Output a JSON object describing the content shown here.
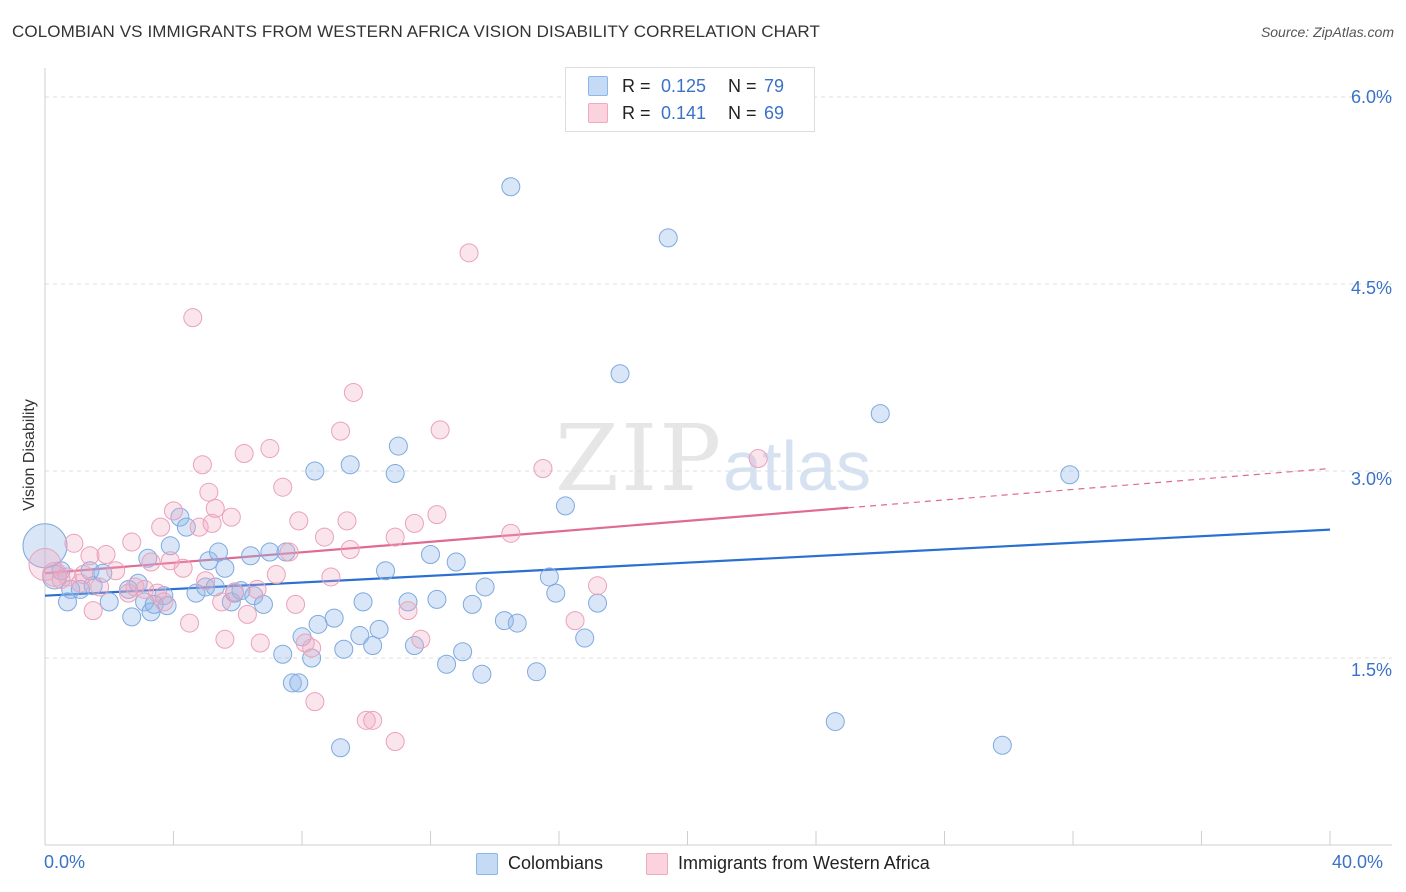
{
  "header": {
    "title": "COLOMBIAN VS IMMIGRANTS FROM WESTERN AFRICA VISION DISABILITY CORRELATION CHART",
    "source": "Source: ZipAtlas.com"
  },
  "watermark": {
    "zip": "ZIP",
    "atlas": "atlas"
  },
  "colors": {
    "blue": "#8fb6e8",
    "blue_line": "#2a6fd1",
    "pink": "#f1a9c0",
    "pink_line": "#e06a93",
    "axis_text": "#3a72c8"
  },
  "stats": [
    {
      "r_label": "R =",
      "r_value": "0.125",
      "n_label": "N =",
      "n_value": "79"
    },
    {
      "r_label": "R =",
      "r_value": "0.141",
      "n_label": "N =",
      "n_value": "69"
    }
  ],
  "chart_data": {
    "type": "scatter",
    "title": "COLOMBIAN VS IMMIGRANTS FROM WESTERN AFRICA VISION DISABILITY CORRELATION CHART",
    "xlabel": "",
    "ylabel": "Vision Disability",
    "xlim": [
      0,
      40
    ],
    "ylim": [
      0,
      6.2
    ],
    "x_tick_labels": [
      "0.0%",
      "40.0%"
    ],
    "y_ticks": [
      1.5,
      3.0,
      4.5,
      6.0
    ],
    "y_tick_labels": [
      "1.5%",
      "3.0%",
      "4.5%",
      "6.0%"
    ],
    "legend_position": "bottom",
    "series": [
      {
        "name": "Colombians",
        "trend": {
          "x": [
            0,
            40
          ],
          "y": [
            2.0,
            2.53
          ],
          "dashed_from": null
        },
        "points": [
          [
            0.0,
            2.4,
            22
          ],
          [
            0.3,
            2.15,
            12
          ],
          [
            0.7,
            1.95,
            9
          ],
          [
            0.8,
            2.05,
            9
          ],
          [
            1.1,
            2.05,
            9
          ],
          [
            1.4,
            2.2,
            9
          ],
          [
            1.5,
            2.08,
            9
          ],
          [
            1.8,
            2.18,
            9
          ],
          [
            2.0,
            1.95,
            9
          ],
          [
            2.6,
            2.05,
            9
          ],
          [
            2.7,
            1.83,
            9
          ],
          [
            2.9,
            2.1,
            9
          ],
          [
            3.1,
            1.95,
            9
          ],
          [
            3.2,
            2.3,
            9
          ],
          [
            3.3,
            1.87,
            9
          ],
          [
            3.4,
            1.93,
            9
          ],
          [
            3.7,
            2.0,
            9
          ],
          [
            3.8,
            1.92,
            9
          ],
          [
            3.9,
            2.4,
            9
          ],
          [
            4.2,
            2.63,
            9
          ],
          [
            4.4,
            2.55,
            9
          ],
          [
            4.7,
            2.02,
            9
          ],
          [
            5.0,
            2.07,
            9
          ],
          [
            5.1,
            2.28,
            9
          ],
          [
            5.3,
            2.07,
            9
          ],
          [
            5.4,
            2.35,
            9
          ],
          [
            5.6,
            2.22,
            9
          ],
          [
            5.8,
            1.95,
            9
          ],
          [
            5.9,
            2.02,
            9
          ],
          [
            6.1,
            2.04,
            9
          ],
          [
            6.4,
            2.32,
            9
          ],
          [
            6.5,
            2.0,
            9
          ],
          [
            6.8,
            1.93,
            9
          ],
          [
            7.0,
            2.35,
            9
          ],
          [
            7.4,
            1.53,
            9
          ],
          [
            7.5,
            2.35,
            9
          ],
          [
            7.7,
            1.3,
            9
          ],
          [
            7.9,
            1.3,
            9
          ],
          [
            8.0,
            1.67,
            9
          ],
          [
            8.3,
            1.5,
            9
          ],
          [
            8.4,
            3.0,
            9
          ],
          [
            8.5,
            1.77,
            9
          ],
          [
            9.0,
            1.82,
            9
          ],
          [
            9.2,
            0.78,
            9
          ],
          [
            9.3,
            1.57,
            9
          ],
          [
            9.5,
            3.05,
            9
          ],
          [
            9.8,
            1.68,
            9
          ],
          [
            9.9,
            1.95,
            9
          ],
          [
            10.2,
            1.6,
            9
          ],
          [
            10.4,
            1.73,
            9
          ],
          [
            10.6,
            2.2,
            9
          ],
          [
            10.9,
            2.98,
            9
          ],
          [
            11.0,
            3.2,
            9
          ],
          [
            11.3,
            1.95,
            9
          ],
          [
            11.5,
            1.6,
            9
          ],
          [
            12.0,
            2.33,
            9
          ],
          [
            12.2,
            1.97,
            9
          ],
          [
            12.5,
            1.45,
            9
          ],
          [
            12.8,
            2.27,
            9
          ],
          [
            13.0,
            1.55,
            9
          ],
          [
            13.3,
            1.93,
            9
          ],
          [
            13.6,
            1.37,
            9
          ],
          [
            13.7,
            2.07,
            9
          ],
          [
            14.3,
            1.8,
            9
          ],
          [
            14.7,
            1.78,
            9
          ],
          [
            14.5,
            5.28,
            9
          ],
          [
            15.3,
            1.39,
            9
          ],
          [
            15.7,
            2.15,
            9
          ],
          [
            15.9,
            2.02,
            9
          ],
          [
            16.2,
            2.72,
            9
          ],
          [
            16.8,
            1.66,
            9
          ],
          [
            17.2,
            1.94,
            9
          ],
          [
            17.9,
            3.78,
            9
          ],
          [
            19.4,
            4.87,
            9
          ],
          [
            24.6,
            0.99,
            9
          ],
          [
            26.0,
            3.46,
            9
          ],
          [
            29.8,
            0.8,
            9
          ],
          [
            31.9,
            2.97,
            9
          ],
          [
            0.5,
            2.2,
            9
          ]
        ]
      },
      {
        "name": "Immigrants from Western Africa",
        "trend": {
          "x": [
            0,
            40
          ],
          "y": [
            2.18,
            3.02
          ],
          "dashed_from": 25
        },
        "points": [
          [
            0.0,
            2.25,
            16
          ],
          [
            0.3,
            2.17,
            12
          ],
          [
            0.7,
            2.15,
            9
          ],
          [
            0.9,
            2.42,
            9
          ],
          [
            1.1,
            2.1,
            9
          ],
          [
            1.4,
            2.32,
            9
          ],
          [
            1.5,
            1.88,
            9
          ],
          [
            1.7,
            2.07,
            9
          ],
          [
            1.9,
            2.33,
            9
          ],
          [
            2.2,
            2.2,
            9
          ],
          [
            2.6,
            2.02,
            9
          ],
          [
            2.7,
            2.43,
            9
          ],
          [
            2.8,
            2.07,
            9
          ],
          [
            3.1,
            2.05,
            9
          ],
          [
            3.3,
            2.27,
            9
          ],
          [
            3.5,
            2.02,
            9
          ],
          [
            3.6,
            2.55,
            9
          ],
          [
            3.7,
            1.95,
            9
          ],
          [
            3.9,
            2.28,
            9
          ],
          [
            4.0,
            2.68,
            9
          ],
          [
            4.3,
            2.22,
            9
          ],
          [
            4.5,
            1.78,
            9
          ],
          [
            4.6,
            4.23,
            9
          ],
          [
            4.8,
            2.55,
            9
          ],
          [
            4.9,
            3.05,
            9
          ],
          [
            5.0,
            2.12,
            9
          ],
          [
            5.1,
            2.83,
            9
          ],
          [
            5.2,
            2.58,
            9
          ],
          [
            5.3,
            2.7,
            9
          ],
          [
            5.5,
            1.95,
            9
          ],
          [
            5.6,
            1.65,
            9
          ],
          [
            5.8,
            2.63,
            9
          ],
          [
            5.9,
            2.03,
            9
          ],
          [
            6.2,
            3.14,
            9
          ],
          [
            6.3,
            1.85,
            9
          ],
          [
            6.6,
            2.05,
            9
          ],
          [
            6.7,
            1.62,
            9
          ],
          [
            7.0,
            3.18,
            9
          ],
          [
            7.2,
            2.17,
            9
          ],
          [
            7.4,
            2.87,
            9
          ],
          [
            7.6,
            2.35,
            9
          ],
          [
            7.8,
            1.93,
            9
          ],
          [
            7.9,
            2.6,
            9
          ],
          [
            8.1,
            1.62,
            9
          ],
          [
            8.3,
            1.58,
            9
          ],
          [
            8.4,
            1.15,
            9
          ],
          [
            8.7,
            2.47,
            9
          ],
          [
            8.9,
            2.15,
            9
          ],
          [
            9.2,
            3.32,
            9
          ],
          [
            9.4,
            2.6,
            9
          ],
          [
            9.5,
            2.37,
            9
          ],
          [
            9.6,
            3.63,
            9
          ],
          [
            10.0,
            1.0,
            9
          ],
          [
            10.2,
            1.0,
            9
          ],
          [
            10.9,
            2.47,
            9
          ],
          [
            10.9,
            0.83,
            9
          ],
          [
            11.3,
            1.88,
            9
          ],
          [
            11.5,
            2.58,
            9
          ],
          [
            11.7,
            1.65,
            9
          ],
          [
            12.2,
            2.65,
            9
          ],
          [
            12.3,
            3.33,
            9
          ],
          [
            13.2,
            4.75,
            9
          ],
          [
            14.5,
            2.5,
            9
          ],
          [
            15.5,
            3.02,
            9
          ],
          [
            16.5,
            1.8,
            9
          ],
          [
            17.2,
            2.08,
            9
          ],
          [
            22.2,
            3.1,
            9
          ],
          [
            0.5,
            2.13,
            9
          ],
          [
            1.2,
            2.17,
            9
          ]
        ]
      }
    ]
  },
  "axis": {
    "x_min_label": "0.0%",
    "x_max_label": "40.0%"
  },
  "legend": {
    "items": [
      "Colombians",
      "Immigrants from Western Africa"
    ]
  }
}
